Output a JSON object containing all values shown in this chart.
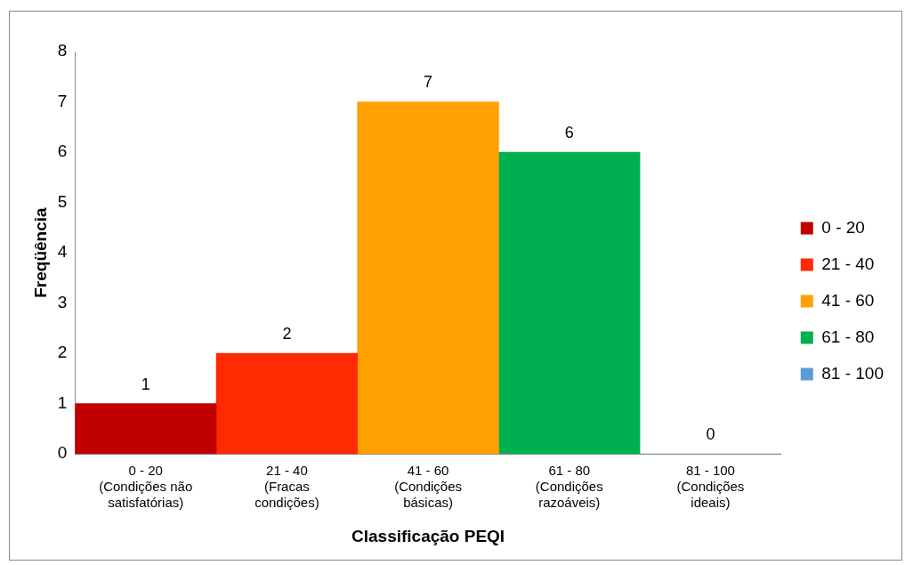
{
  "chart_data": {
    "type": "bar",
    "xlabel": "Classificação PEQI",
    "ylabel": "Freqüência",
    "categories": [
      "0 - 20\n(Condições não\nsatisfatórias)",
      "21 - 40\n(Fracas\ncondições)",
      "41 - 60\n(Condições\nbásicas)",
      "61 - 80\n(Condições\nrazoáveis)",
      "81 - 100\n(Condições\nideais)"
    ],
    "series": [
      {
        "name": "0 - 20",
        "color": "#c00000",
        "values": [
          1,
          null,
          null,
          null,
          null
        ]
      },
      {
        "name": "21 - 40",
        "color": "#ff2a00",
        "values": [
          null,
          2,
          null,
          null,
          null
        ]
      },
      {
        "name": "41 - 60",
        "color": "#ffa000",
        "values": [
          null,
          null,
          7,
          null,
          null
        ]
      },
      {
        "name": "61 - 80",
        "color": "#00b050",
        "values": [
          null,
          null,
          null,
          6,
          null
        ]
      },
      {
        "name": "81 - 100",
        "color": "#5b9bd5",
        "values": [
          null,
          null,
          null,
          null,
          0
        ]
      }
    ],
    "ylim": [
      0,
      8
    ],
    "yticks": [
      0,
      1,
      2,
      3,
      4,
      5,
      6,
      7,
      8
    ],
    "grid": false,
    "legend": "right",
    "data_labels": true
  }
}
